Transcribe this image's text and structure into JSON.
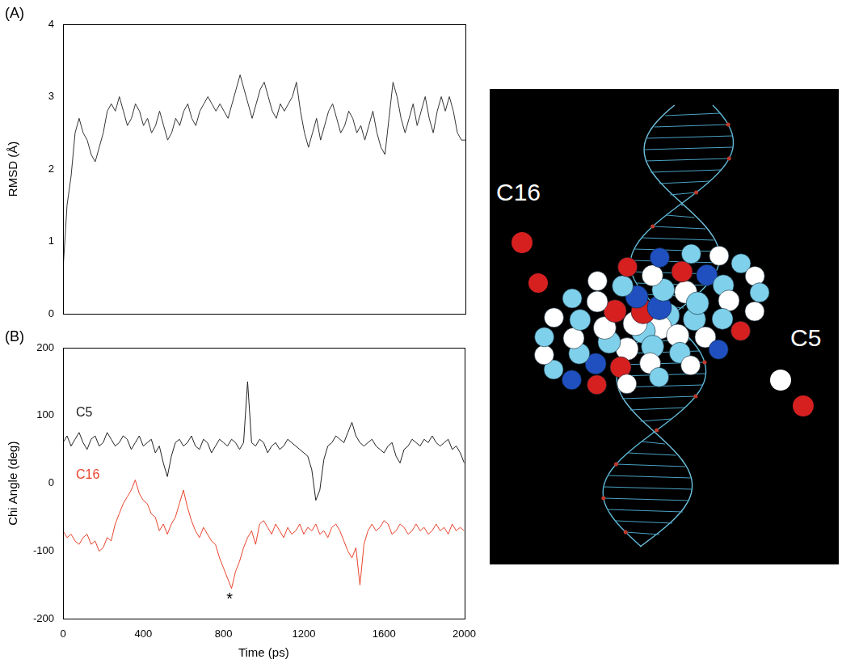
{
  "chart_data": [
    {
      "type": "line",
      "panel": "(A)",
      "y_label": "RMSD (Å)",
      "color": "#333333",
      "x": [
        0,
        20,
        40,
        60,
        80,
        100,
        120,
        140,
        160,
        180,
        200,
        220,
        240,
        260,
        280,
        300,
        320,
        340,
        360,
        380,
        400,
        420,
        440,
        460,
        480,
        500,
        520,
        540,
        560,
        580,
        600,
        620,
        640,
        660,
        680,
        700,
        720,
        740,
        760,
        780,
        800,
        820,
        840,
        860,
        880,
        900,
        920,
        940,
        960,
        980,
        1000,
        1020,
        1040,
        1060,
        1080,
        1100,
        1120,
        1140,
        1160,
        1180,
        1200,
        1220,
        1240,
        1260,
        1280,
        1300,
        1320,
        1340,
        1360,
        1380,
        1400,
        1420,
        1440,
        1460,
        1480,
        1500,
        1520,
        1540,
        1560,
        1580,
        1600,
        1620,
        1640,
        1660,
        1680,
        1700,
        1720,
        1740,
        1760,
        1780,
        1800,
        1820,
        1840,
        1860,
        1880,
        1900,
        1920,
        1940,
        1960,
        1980,
        2000
      ],
      "values": [
        0.6,
        1.5,
        1.9,
        2.5,
        2.7,
        2.5,
        2.4,
        2.2,
        2.1,
        2.3,
        2.5,
        2.8,
        2.9,
        2.8,
        3.0,
        2.8,
        2.6,
        2.7,
        2.9,
        2.8,
        2.6,
        2.7,
        2.5,
        2.6,
        2.8,
        2.6,
        2.4,
        2.5,
        2.7,
        2.6,
        2.8,
        2.9,
        2.7,
        2.6,
        2.8,
        2.9,
        3.0,
        2.9,
        2.8,
        2.9,
        2.8,
        2.7,
        2.9,
        3.1,
        3.3,
        3.1,
        2.9,
        2.7,
        2.9,
        3.1,
        3.2,
        3.0,
        2.8,
        2.7,
        2.9,
        2.8,
        2.9,
        3.0,
        3.2,
        2.8,
        2.5,
        2.3,
        2.5,
        2.7,
        2.4,
        2.6,
        2.8,
        2.9,
        2.7,
        2.5,
        2.6,
        2.8,
        2.7,
        2.5,
        2.6,
        2.4,
        2.6,
        2.8,
        2.5,
        2.3,
        2.2,
        2.7,
        3.2,
        3.0,
        2.7,
        2.5,
        2.7,
        2.9,
        2.6,
        2.8,
        3.0,
        2.7,
        2.5,
        2.8,
        3.0,
        2.8,
        3.0,
        2.8,
        2.5,
        2.4,
        2.4
      ],
      "xlim": [
        0,
        2000
      ],
      "ylim": [
        0,
        4
      ],
      "yticks": [
        0,
        1,
        2,
        3,
        4
      ],
      "tick_labels": "y",
      "grid": false
    },
    {
      "type": "line",
      "panel": "(B)",
      "x_label": "Time (ps)",
      "y_label": "Chi Angle (deg)",
      "x": [
        0,
        20,
        40,
        60,
        80,
        100,
        120,
        140,
        160,
        180,
        200,
        220,
        240,
        260,
        280,
        300,
        320,
        340,
        360,
        380,
        400,
        420,
        440,
        460,
        480,
        500,
        520,
        540,
        560,
        580,
        600,
        620,
        640,
        660,
        680,
        700,
        720,
        740,
        760,
        780,
        800,
        820,
        840,
        860,
        880,
        900,
        920,
        940,
        960,
        980,
        1000,
        1020,
        1040,
        1060,
        1080,
        1100,
        1120,
        1140,
        1160,
        1180,
        1200,
        1220,
        1240,
        1260,
        1280,
        1300,
        1320,
        1340,
        1360,
        1380,
        1400,
        1420,
        1440,
        1460,
        1480,
        1500,
        1520,
        1540,
        1560,
        1580,
        1600,
        1620,
        1640,
        1660,
        1680,
        1700,
        1720,
        1740,
        1760,
        1780,
        1800,
        1820,
        1840,
        1860,
        1880,
        1900,
        1920,
        1940,
        1960,
        1980,
        2000
      ],
      "series": [
        {
          "name": "C5",
          "color": "#222222",
          "values": [
            60,
            70,
            55,
            65,
            75,
            60,
            50,
            65,
            70,
            55,
            60,
            75,
            65,
            55,
            60,
            70,
            65,
            50,
            60,
            70,
            55,
            60,
            65,
            45,
            55,
            30,
            10,
            40,
            60,
            65,
            55,
            60,
            70,
            55,
            50,
            65,
            60,
            45,
            55,
            65,
            60,
            55,
            65,
            60,
            50,
            60,
            150,
            60,
            55,
            65,
            60,
            45,
            55,
            60,
            50,
            55,
            65,
            60,
            55,
            50,
            45,
            40,
            20,
            -25,
            -10,
            35,
            55,
            60,
            70,
            65,
            60,
            75,
            90,
            70,
            60,
            55,
            60,
            65,
            55,
            50,
            45,
            55,
            60,
            40,
            30,
            50,
            55,
            65,
            60,
            55,
            65,
            60,
            70,
            60,
            55,
            60,
            65,
            50,
            55,
            45,
            30
          ]
        },
        {
          "name": "C16",
          "color": "#e8442c",
          "values": [
            -70,
            -80,
            -75,
            -85,
            -90,
            -80,
            -75,
            -90,
            -85,
            -100,
            -95,
            -80,
            -85,
            -60,
            -45,
            -30,
            -20,
            -10,
            5,
            -15,
            -25,
            -30,
            -45,
            -50,
            -70,
            -60,
            -75,
            -60,
            -50,
            -30,
            -10,
            -35,
            -55,
            -70,
            -80,
            -65,
            -75,
            -85,
            -90,
            -110,
            -125,
            -140,
            -155,
            -130,
            -115,
            -95,
            -80,
            -70,
            -90,
            -60,
            -55,
            -65,
            -75,
            -60,
            -70,
            -80,
            -65,
            -75,
            -70,
            -60,
            -75,
            -65,
            -70,
            -60,
            -75,
            -70,
            -80,
            -65,
            -60,
            -70,
            -85,
            -100,
            -110,
            -95,
            -150,
            -90,
            -70,
            -60,
            -70,
            -65,
            -55,
            -60,
            -75,
            -70,
            -60,
            -65,
            -75,
            -70,
            -60,
            -70,
            -65,
            -75,
            -70,
            -60,
            -70,
            -65,
            -75,
            -60,
            -70,
            -65,
            -70
          ]
        }
      ],
      "xlim": [
        0,
        2000
      ],
      "ylim": [
        -200,
        200
      ],
      "xticks": [
        0,
        400,
        800,
        1200,
        1600,
        2000
      ],
      "yticks": [
        -200,
        -100,
        0,
        100,
        200
      ],
      "grid": false,
      "annotations": [
        {
          "text": "*",
          "x": 830,
          "y": -172
        }
      ]
    }
  ],
  "image": {
    "labels": [
      "C16",
      "C5"
    ]
  }
}
